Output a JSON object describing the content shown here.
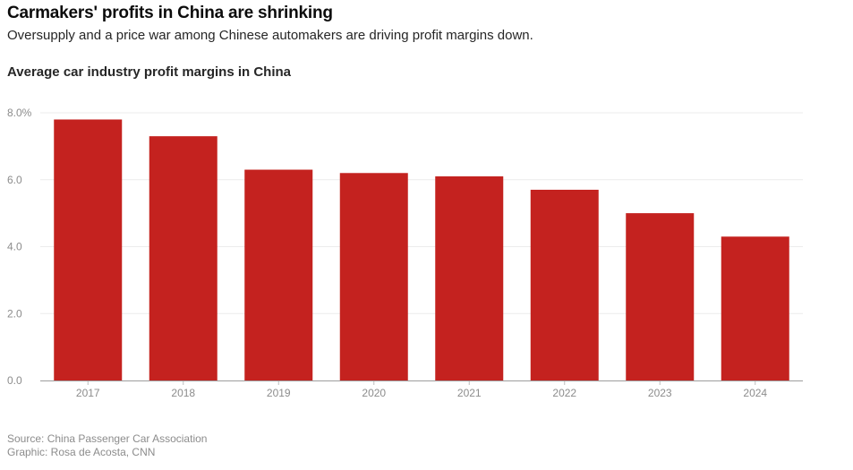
{
  "header": {
    "title": "Carmakers' profits in China are shrinking",
    "subtitle": "Oversupply and a price war among Chinese automakers are driving profit margins down."
  },
  "chart_data": {
    "type": "bar",
    "title": "Average car industry profit margins in China",
    "categories": [
      "2017",
      "2018",
      "2019",
      "2020",
      "2021",
      "2022",
      "2023",
      "2024"
    ],
    "values": [
      7.8,
      7.3,
      6.3,
      6.2,
      6.1,
      5.7,
      5.0,
      4.3
    ],
    "ylim": [
      0,
      8
    ],
    "yticks": [
      0,
      2,
      4,
      6,
      8
    ],
    "ytick_labels": [
      "0.0",
      "2.0",
      "4.0",
      "6.0",
      "8.0%"
    ],
    "xlabel": "",
    "ylabel": "",
    "grid": true,
    "bar_color": "#c4221f"
  },
  "footer": {
    "source": "Source: China Passenger Car Association",
    "graphic": "Graphic: Rosa de Acosta, CNN"
  }
}
